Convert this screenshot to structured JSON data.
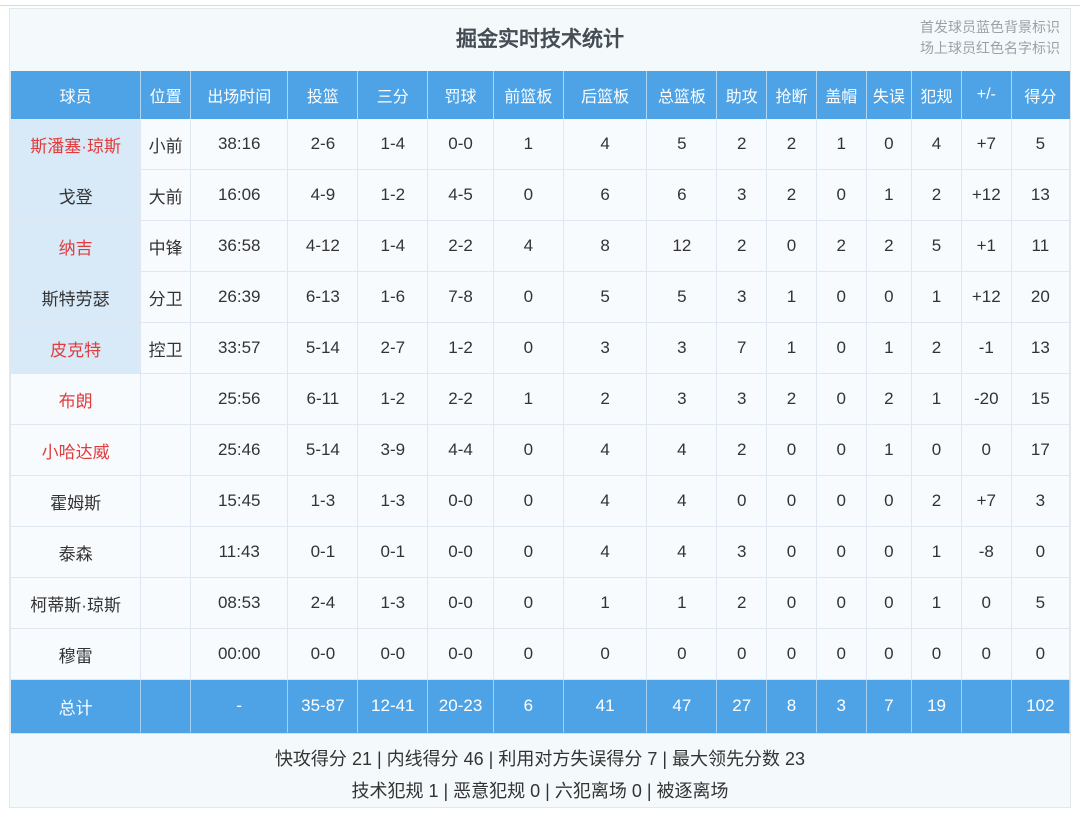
{
  "title": "掘金实时技术统计",
  "legend": {
    "line1": "首发球员蓝色背景标识",
    "line2": "场上球员红色名字标识"
  },
  "colors": {
    "header_blue": "#4da3e6",
    "starter_row_bg": "#d8e9f8",
    "on_court_name_red": "#e03c3c",
    "row_bg": "#f8fbfe",
    "panel_bg": "#f4f9fc"
  },
  "table": {
    "columns": [
      "球员",
      "位置",
      "出场时间",
      "投篮",
      "三分",
      "罚球",
      "前篮板",
      "后篮板",
      "总篮板",
      "助攻",
      "抢断",
      "盖帽",
      "失误",
      "犯规",
      "+/-",
      "得分"
    ],
    "rows": [
      {
        "name": "斯潘塞·琼斯",
        "starter": true,
        "on_court": true,
        "position": "小前",
        "stats": [
          "38:16",
          "2-6",
          "1-4",
          "0-0",
          "1",
          "4",
          "5",
          "2",
          "2",
          "1",
          "0",
          "4",
          "+7",
          "5"
        ]
      },
      {
        "name": "戈登",
        "starter": true,
        "on_court": false,
        "position": "大前",
        "stats": [
          "16:06",
          "4-9",
          "1-2",
          "4-5",
          "0",
          "6",
          "6",
          "3",
          "2",
          "0",
          "1",
          "2",
          "+12",
          "13"
        ]
      },
      {
        "name": "纳吉",
        "starter": true,
        "on_court": true,
        "position": "中锋",
        "stats": [
          "36:58",
          "4-12",
          "1-4",
          "2-2",
          "4",
          "8",
          "12",
          "2",
          "0",
          "2",
          "2",
          "5",
          "+1",
          "11"
        ]
      },
      {
        "name": "斯特劳瑟",
        "starter": true,
        "on_court": false,
        "position": "分卫",
        "stats": [
          "26:39",
          "6-13",
          "1-6",
          "7-8",
          "0",
          "5",
          "5",
          "3",
          "1",
          "0",
          "0",
          "1",
          "+12",
          "20"
        ]
      },
      {
        "name": "皮克特",
        "starter": true,
        "on_court": true,
        "position": "控卫",
        "stats": [
          "33:57",
          "5-14",
          "2-7",
          "1-2",
          "0",
          "3",
          "3",
          "7",
          "1",
          "0",
          "1",
          "2",
          "-1",
          "13"
        ]
      },
      {
        "name": "布朗",
        "starter": false,
        "on_court": true,
        "position": "",
        "stats": [
          "25:56",
          "6-11",
          "1-2",
          "2-2",
          "1",
          "2",
          "3",
          "3",
          "2",
          "0",
          "2",
          "1",
          "-20",
          "15"
        ]
      },
      {
        "name": "小哈达威",
        "starter": false,
        "on_court": true,
        "position": "",
        "stats": [
          "25:46",
          "5-14",
          "3-9",
          "4-4",
          "0",
          "4",
          "4",
          "2",
          "0",
          "0",
          "1",
          "0",
          "0",
          "17"
        ]
      },
      {
        "name": "霍姆斯",
        "starter": false,
        "on_court": false,
        "position": "",
        "stats": [
          "15:45",
          "1-3",
          "1-3",
          "0-0",
          "0",
          "4",
          "4",
          "0",
          "0",
          "0",
          "0",
          "2",
          "+7",
          "3"
        ]
      },
      {
        "name": "泰森",
        "starter": false,
        "on_court": false,
        "position": "",
        "stats": [
          "11:43",
          "0-1",
          "0-1",
          "0-0",
          "0",
          "4",
          "4",
          "3",
          "0",
          "0",
          "0",
          "1",
          "-8",
          "0"
        ]
      },
      {
        "name": "柯蒂斯·琼斯",
        "starter": false,
        "on_court": false,
        "position": "",
        "stats": [
          "08:53",
          "2-4",
          "1-3",
          "0-0",
          "0",
          "1",
          "1",
          "2",
          "0",
          "0",
          "0",
          "1",
          "0",
          "5"
        ]
      },
      {
        "name": "穆雷",
        "starter": false,
        "on_court": false,
        "position": "",
        "stats": [
          "00:00",
          "0-0",
          "0-0",
          "0-0",
          "0",
          "0",
          "0",
          "0",
          "0",
          "0",
          "0",
          "0",
          "0",
          "0"
        ]
      }
    ],
    "total": {
      "label": "总计",
      "position": "",
      "stats": [
        "-",
        "35-87",
        "12-41",
        "20-23",
        "6",
        "41",
        "47",
        "27",
        "8",
        "3",
        "7",
        "19",
        "",
        "102"
      ]
    }
  },
  "footer": {
    "line1": "快攻得分 21 | 内线得分 46 | 利用对方失误得分 7 | 最大领先分数 23",
    "line2": "技术犯规 1 | 恶意犯规 0 | 六犯离场 0 | 被逐离场"
  }
}
